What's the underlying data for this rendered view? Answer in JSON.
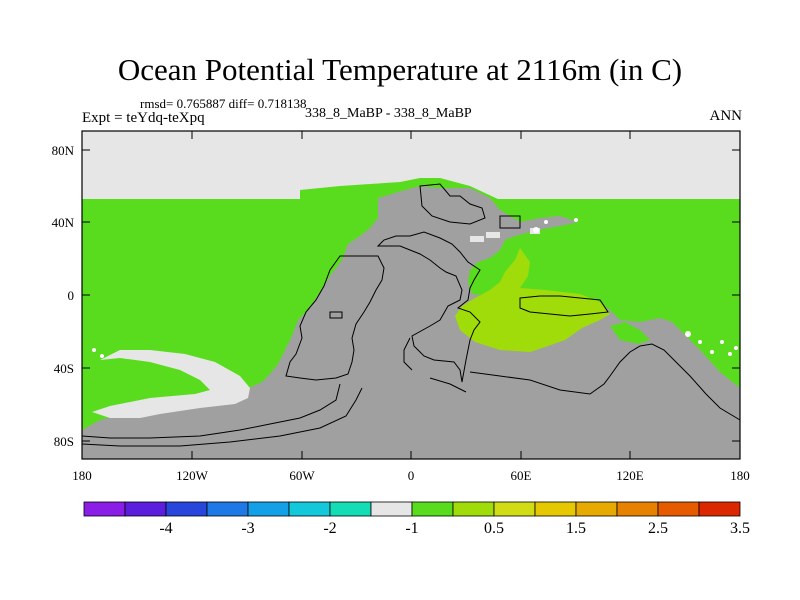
{
  "header": {
    "title": "Ocean Potential Temperature at 2116m (in C)",
    "stats": "rmsd= 0.765887 diff= 0.718138",
    "experiment": "Expt = teYdq-teXpq",
    "subtitle": "338_8_MaBP - 338_8_MaBP",
    "season": "ANN"
  },
  "axes": {
    "y_ticks": [
      "80N",
      "40N",
      "0",
      "40S",
      "80S"
    ],
    "x_ticks": [
      "180",
      "120W",
      "60W",
      "0",
      "60E",
      "120E",
      "180"
    ]
  },
  "legend": {
    "colors": [
      "#8a1ee6",
      "#5a1edc",
      "#2846dc",
      "#1e78e6",
      "#14a0e6",
      "#14c8dc",
      "#14dcb4",
      "#e6e6e6",
      "#5adc1e",
      "#a0dc0a",
      "#d2dc14",
      "#e6c800",
      "#e6aa00",
      "#e68200",
      "#e65a00",
      "#dc2800"
    ],
    "labels": [
      "-4",
      "-3",
      "-2",
      "-1",
      "0.5",
      "1.5",
      "2.5",
      "3.5"
    ]
  },
  "colors": {
    "land": "#a0a0a0",
    "green": "#5adc1e",
    "yellow_green": "#a0dc0a",
    "light_gray": "#e6e6e6"
  }
}
